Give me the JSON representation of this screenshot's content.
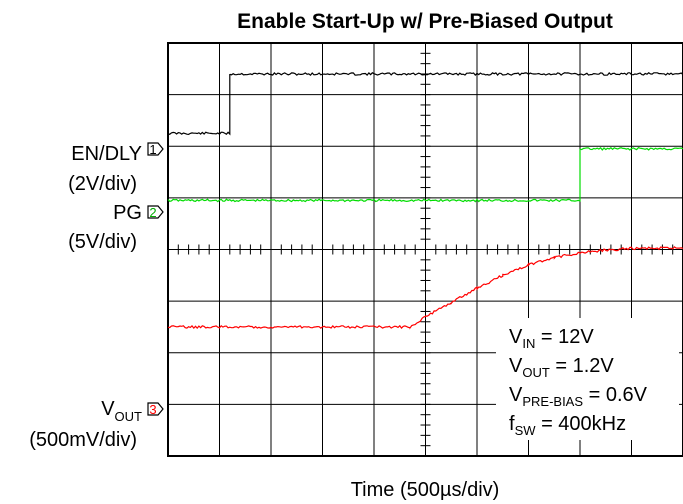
{
  "chart_data": {
    "type": "line",
    "title": "Enable Start-Up w/ Pre-Biased Output",
    "xlabel": "Time (500µs/div)",
    "x_divisions": 10,
    "y_divisions": 8,
    "x_unit": "div",
    "y_unit": "div",
    "xlim": [
      0,
      10
    ],
    "ylim": [
      0,
      8
    ],
    "channels": [
      {
        "name": "EN/DLY",
        "scale": "(2V/div)",
        "marker": "1",
        "level_div": 6.25
      },
      {
        "name": "PG",
        "scale": "(5V/div)",
        "marker": "2",
        "level_div": 4.95
      },
      {
        "name_main": "V",
        "name_sub": "OUT",
        "scale": "(500mV/div)",
        "marker": "3",
        "level_div": 1.0
      }
    ],
    "series": [
      {
        "name": "EN/DLY",
        "color": "#000000",
        "x": [
          0,
          1.2,
          1.2,
          10
        ],
        "y": [
          6.25,
          6.25,
          7.4,
          7.4
        ]
      },
      {
        "name": "PG",
        "color": "#00dd00",
        "x": [
          0,
          8.0,
          8.0,
          10
        ],
        "y": [
          4.95,
          4.95,
          5.95,
          5.95
        ]
      },
      {
        "name": "V_OUT",
        "color": "#ff0000",
        "x": [
          0,
          4.7,
          5.0,
          5.5,
          6.0,
          6.5,
          7.0,
          7.5,
          8.0,
          8.5,
          9.0,
          10
        ],
        "y": [
          2.5,
          2.5,
          2.7,
          2.98,
          3.25,
          3.5,
          3.7,
          3.84,
          3.94,
          3.99,
          4.02,
          4.03
        ]
      }
    ],
    "annotations": [
      {
        "main": "V",
        "sub": "IN",
        "text": " = 12V"
      },
      {
        "main": "V",
        "sub": "OUT",
        "text": " = 1.2V"
      },
      {
        "main": "V",
        "sub": "PRE-BIAS",
        "text": " = 0.6V"
      },
      {
        "main": "f",
        "sub": "SW",
        "text": " = 400kHz"
      }
    ]
  }
}
